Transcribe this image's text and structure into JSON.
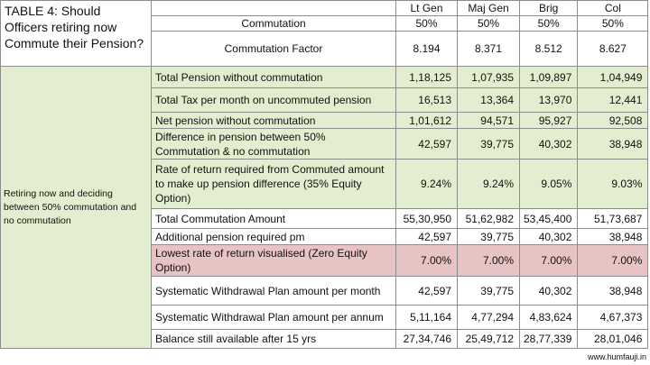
{
  "title": "TABLE 4: Should Officers retiring now Commute their Pension?",
  "columns": [
    "Lt Gen",
    "Maj Gen",
    "Brig",
    "Col"
  ],
  "commutation": {
    "label": "Commutation",
    "values": [
      "50%",
      "50%",
      "50%",
      "50%"
    ]
  },
  "commutation_factor": {
    "label": "Commutation Factor",
    "values": [
      "8.194",
      "8.371",
      "8.512",
      "8.627"
    ]
  },
  "left_label": "Retiring now and deciding between 50% commutation and no commutation",
  "rows": [
    {
      "label": "Total Pension without commutation",
      "values": [
        "1,18,125",
        "1,07,935",
        "1,09,897",
        "1,04,949"
      ],
      "style": "green"
    },
    {
      "label": "Total Tax per month on uncommuted pension",
      "values": [
        "16,513",
        "13,364",
        "13,970",
        "12,441"
      ],
      "style": "green"
    },
    {
      "label": "Net pension without commutation",
      "values": [
        "1,01,612",
        "94,571",
        "95,927",
        "92,508"
      ],
      "style": "green"
    },
    {
      "label": "Difference in pension between 50% Commutation & no commutation",
      "values": [
        "42,597",
        "39,775",
        "40,302",
        "38,948"
      ],
      "style": "green"
    },
    {
      "label": "Rate of return required from Commuted amount to make up pension difference (35% Equity Option)",
      "values": [
        "9.24%",
        "9.24%",
        "9.05%",
        "9.03%"
      ],
      "style": "green"
    },
    {
      "label": "Total Commutation Amount",
      "values": [
        "55,30,950",
        "51,62,982",
        "53,45,400",
        "51,73,687"
      ],
      "style": "white"
    },
    {
      "label": "Additional pension required pm",
      "values": [
        "42,597",
        "39,775",
        "40,302",
        "38,948"
      ],
      "style": "white"
    },
    {
      "label": "Lowest rate of return visualised (Zero Equity Option)",
      "values": [
        "7.00%",
        "7.00%",
        "7.00%",
        "7.00%"
      ],
      "style": "pink"
    },
    {
      "label": "Systematic Withdrawal Plan amount per month",
      "values": [
        "42,597",
        "39,775",
        "40,302",
        "38,948"
      ],
      "style": "white"
    },
    {
      "label": "Systematic Withdrawal Plan amount per annum",
      "values": [
        "5,11,164",
        "4,77,294",
        "4,83,624",
        "4,67,373"
      ],
      "style": "white"
    },
    {
      "label": "Balance still available after 15 yrs",
      "values": [
        "27,34,746",
        "25,49,712",
        "28,77,339",
        "28,01,046"
      ],
      "style": "white"
    }
  ],
  "footer": "www.humfauji.in"
}
